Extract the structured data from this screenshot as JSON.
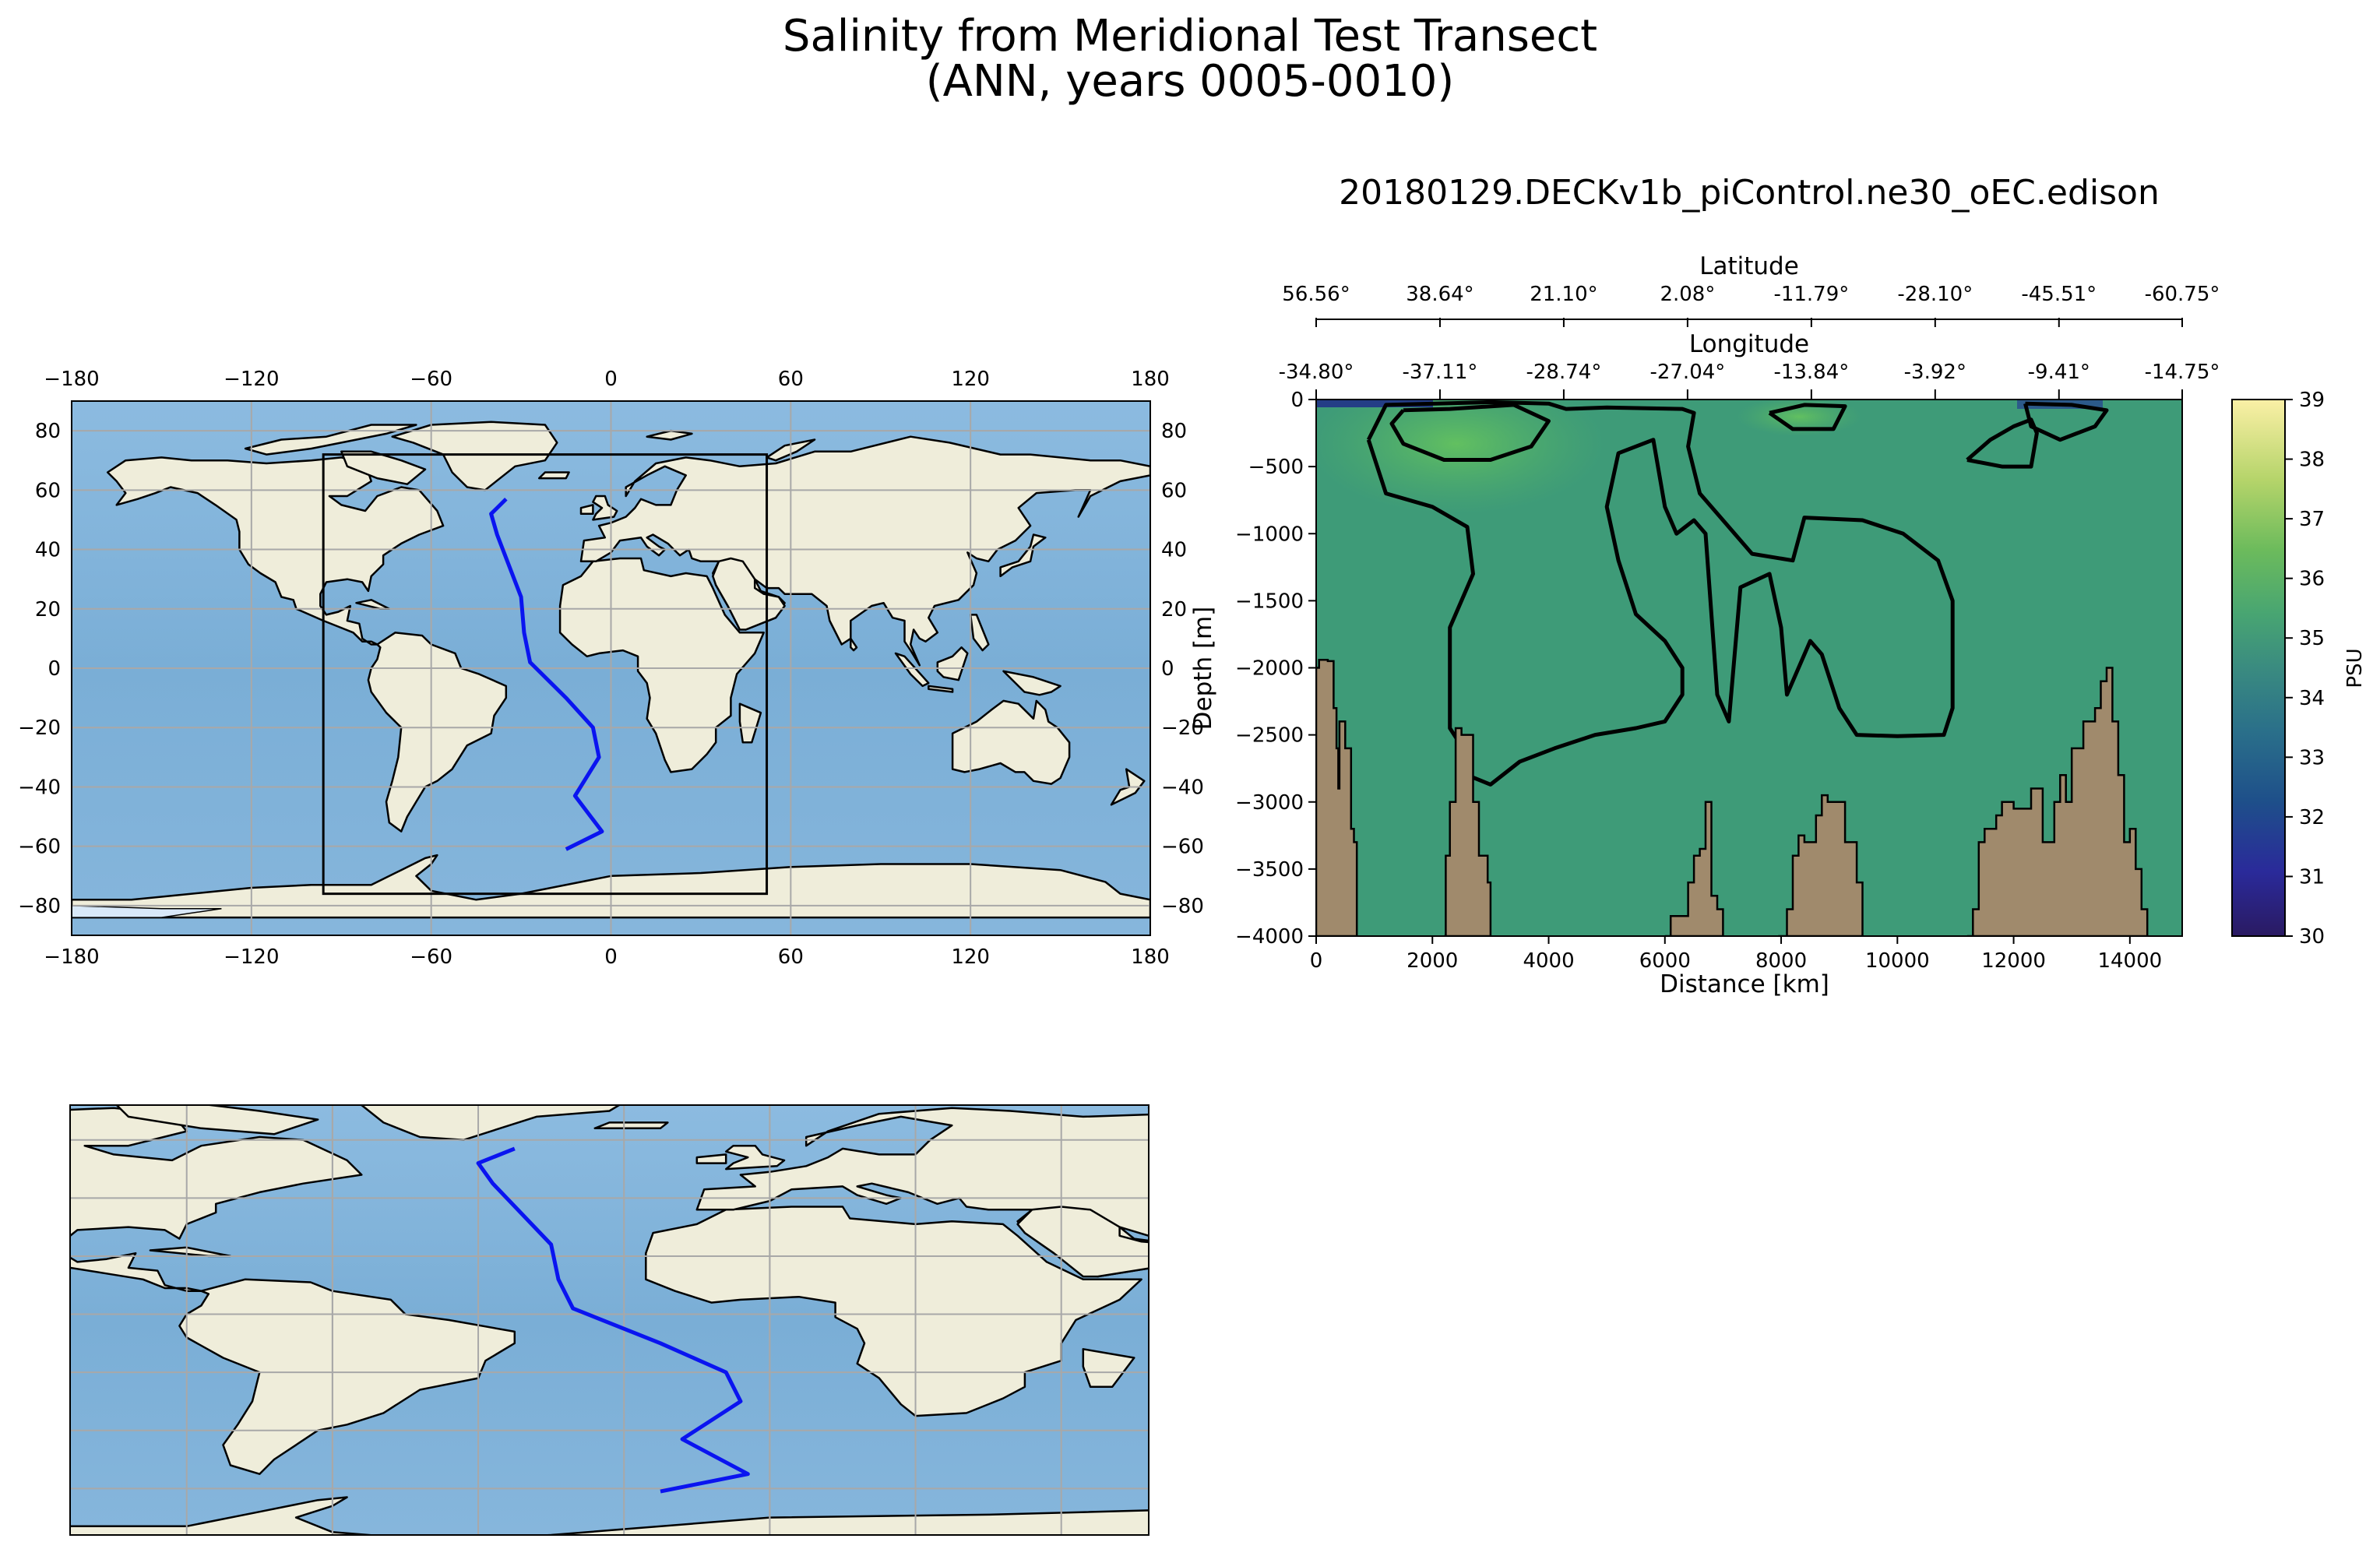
{
  "figure": {
    "title_line1": "Salinity from Meridional Test Transect",
    "title_line2": "(ANN, years 0005-0010)"
  },
  "colors": {
    "ocean": "#82b2d9",
    "land": "#efedda",
    "transect": "#0a14f0",
    "salinity_base": "#3e9b78",
    "salinity_high": "#5fbd63",
    "salinity_low": "#243e86",
    "bathymetry": "#a08a6c",
    "contour": "#000000"
  },
  "chart_data": [
    {
      "type": "map",
      "name": "global-map",
      "projection": "PlateCarree",
      "xlim": [
        -180,
        180
      ],
      "ylim": [
        -90,
        90
      ],
      "xticks": [
        "−180",
        "−120",
        "−60",
        "0",
        "60",
        "120",
        "180"
      ],
      "xtick_values": [
        -180,
        -120,
        -60,
        0,
        60,
        120,
        180
      ],
      "yticks": [
        "80",
        "60",
        "40",
        "20",
        "0",
        "−20",
        "−40",
        "−60",
        "−80"
      ],
      "ytick_values": [
        80,
        60,
        40,
        20,
        0,
        -20,
        -40,
        -60,
        -80
      ],
      "inset_box": {
        "lon": [
          -96,
          52
        ],
        "lat": [
          -76,
          72
        ]
      },
      "transect": {
        "lon": [
          -35,
          -40,
          -38,
          -30,
          -29,
          -27,
          -15,
          -6,
          -4,
          -12,
          -3,
          -15
        ],
        "lat": [
          57,
          52,
          45,
          24,
          12,
          2,
          -10,
          -20,
          -30,
          -43,
          -55,
          -61
        ]
      }
    },
    {
      "type": "heatmap",
      "name": "salinity-transect",
      "title": "20180129.DECKv1b_piControl.ne30_oEC.edison",
      "xlabel": "Distance [km]",
      "ylabel": "Depth [m]",
      "xlim": [
        0,
        14900
      ],
      "ylim": [
        -4000,
        0
      ],
      "xticks": [
        "0",
        "2000",
        "4000",
        "6000",
        "8000",
        "10000",
        "12000",
        "14000"
      ],
      "xtick_values": [
        0,
        2000,
        4000,
        6000,
        8000,
        10000,
        12000,
        14000
      ],
      "yticks": [
        "0",
        "−500",
        "−1000",
        "−1500",
        "−2000",
        "−2500",
        "−3000",
        "−3500",
        "−4000"
      ],
      "ytick_values": [
        0,
        -500,
        -1000,
        -1500,
        -2000,
        -2500,
        -3000,
        -3500,
        -4000
      ],
      "top_axes": {
        "latitude_label": "Latitude",
        "latitude_ticks": [
          "56.56°",
          "38.64°",
          "21.10°",
          "2.08°",
          "-11.79°",
          "-28.10°",
          "-45.51°",
          "-60.75°"
        ],
        "longitude_label": "Longitude",
        "longitude_ticks": [
          "-34.80°",
          "-37.11°",
          "-28.74°",
          "-27.04°",
          "-13.84°",
          "-3.92°",
          "-9.41°",
          "-14.75°"
        ],
        "tick_distances": [
          0,
          2130,
          4260,
          6390,
          8520,
          10650,
          12780,
          14900
        ]
      },
      "colorbar": {
        "label": "PSU",
        "min": 30,
        "max": 39,
        "ticks": [
          "30",
          "31",
          "32",
          "33",
          "34",
          "35",
          "36",
          "37",
          "38",
          "39"
        ],
        "tick_values": [
          30,
          31,
          32,
          33,
          34,
          35,
          36,
          37,
          38,
          39
        ]
      },
      "contour_35": [
        [
          [
            900,
            -300
          ],
          [
            1200,
            -700
          ],
          [
            2000,
            -800
          ],
          [
            2600,
            -950
          ],
          [
            2700,
            -1300
          ],
          [
            2300,
            -1700
          ],
          [
            2300,
            -2450
          ],
          [
            2450,
            -2550
          ],
          [
            2600,
            -2800
          ],
          [
            3000,
            -2870
          ],
          [
            3500,
            -2700
          ],
          [
            4100,
            -2600
          ],
          [
            4800,
            -2500
          ],
          [
            5500,
            -2450
          ],
          [
            6000,
            -2400
          ],
          [
            6300,
            -2200
          ],
          [
            6300,
            -2000
          ],
          [
            6000,
            -1800
          ],
          [
            5500,
            -1600
          ],
          [
            5200,
            -1200
          ],
          [
            5000,
            -800
          ],
          [
            5200,
            -400
          ],
          [
            5800,
            -300
          ],
          [
            6000,
            -800
          ],
          [
            6200,
            -1000
          ],
          [
            6500,
            -900
          ],
          [
            6700,
            -1000
          ],
          [
            6900,
            -2200
          ],
          [
            7100,
            -2400
          ],
          [
            7300,
            -1400
          ],
          [
            7800,
            -1300
          ],
          [
            8000,
            -1700
          ],
          [
            8100,
            -2200
          ],
          [
            8500,
            -1800
          ],
          [
            8700,
            -1900
          ],
          [
            9000,
            -2300
          ],
          [
            9300,
            -2500
          ],
          [
            10000,
            -2510
          ],
          [
            10800,
            -2500
          ],
          [
            10950,
            -2300
          ],
          [
            10950,
            -1500
          ],
          [
            10700,
            -1200
          ],
          [
            10100,
            -1000
          ],
          [
            9400,
            -900
          ],
          [
            8400,
            -880
          ],
          [
            8200,
            -1200
          ],
          [
            7500,
            -1150
          ],
          [
            7000,
            -900
          ],
          [
            6600,
            -700
          ],
          [
            6400,
            -350
          ],
          [
            6500,
            -100
          ],
          [
            6300,
            -70
          ],
          [
            5000,
            -60
          ],
          [
            4300,
            -70
          ],
          [
            4000,
            -30
          ],
          [
            3000,
            -20
          ],
          [
            1200,
            -40
          ],
          [
            900,
            -300
          ]
        ],
        [
          [
            1500,
            -80
          ],
          [
            2300,
            -70
          ],
          [
            3400,
            -40
          ],
          [
            4000,
            -160
          ],
          [
            3700,
            -350
          ],
          [
            3000,
            -450
          ],
          [
            2200,
            -450
          ],
          [
            1500,
            -330
          ],
          [
            1300,
            -180
          ],
          [
            1500,
            -80
          ]
        ],
        [
          [
            11200,
            -450
          ],
          [
            11600,
            -300
          ],
          [
            12000,
            -200
          ],
          [
            12300,
            -150
          ],
          [
            12400,
            -250
          ],
          [
            12300,
            -500
          ],
          [
            11800,
            -500
          ],
          [
            11200,
            -450
          ]
        ],
        [
          [
            7800,
            -100
          ],
          [
            8400,
            -40
          ],
          [
            9100,
            -50
          ],
          [
            8900,
            -220
          ],
          [
            8200,
            -220
          ],
          [
            7800,
            -100
          ]
        ],
        [
          [
            12200,
            -30
          ],
          [
            13000,
            -40
          ],
          [
            13600,
            -80
          ],
          [
            13400,
            -200
          ],
          [
            12800,
            -300
          ],
          [
            12300,
            -200
          ],
          [
            12200,
            -30
          ]
        ]
      ],
      "bathymetry_top": [
        [
          0,
          -2000
        ],
        [
          50,
          -1940
        ],
        [
          200,
          -1950
        ],
        [
          300,
          -2300
        ],
        [
          350,
          -2600
        ],
        [
          380,
          -2900
        ],
        [
          400,
          -2400
        ],
        [
          500,
          -2600
        ],
        [
          600,
          -3200
        ],
        [
          650,
          -3300
        ],
        [
          700,
          -4000
        ],
        [
          2200,
          -4000
        ],
        [
          2230,
          -3400
        ],
        [
          2300,
          -3000
        ],
        [
          2400,
          -2450
        ],
        [
          2500,
          -2500
        ],
        [
          2600,
          -2500
        ],
        [
          2700,
          -3000
        ],
        [
          2800,
          -3400
        ],
        [
          2950,
          -3600
        ],
        [
          3000,
          -4000
        ],
        [
          6000,
          -4000
        ],
        [
          6100,
          -3850
        ],
        [
          6300,
          -3850
        ],
        [
          6400,
          -3600
        ],
        [
          6500,
          -3400
        ],
        [
          6600,
          -3350
        ],
        [
          6700,
          -3000
        ],
        [
          6800,
          -3700
        ],
        [
          6900,
          -3800
        ],
        [
          7000,
          -4000
        ],
        [
          7950,
          -4000
        ],
        [
          8100,
          -3800
        ],
        [
          8200,
          -3400
        ],
        [
          8300,
          -3250
        ],
        [
          8400,
          -3300
        ],
        [
          8600,
          -3100
        ],
        [
          8700,
          -2950
        ],
        [
          8800,
          -3000
        ],
        [
          9000,
          -3000
        ],
        [
          9100,
          -3300
        ],
        [
          9300,
          -3600
        ],
        [
          9400,
          -4000
        ],
        [
          11200,
          -4000
        ],
        [
          11300,
          -3800
        ],
        [
          11400,
          -3300
        ],
        [
          11500,
          -3200
        ],
        [
          11700,
          -3100
        ],
        [
          11800,
          -3000
        ],
        [
          12000,
          -3050
        ],
        [
          12300,
          -2900
        ],
        [
          12500,
          -3300
        ],
        [
          12700,
          -3000
        ],
        [
          12800,
          -2800
        ],
        [
          12900,
          -3000
        ],
        [
          13000,
          -2600
        ],
        [
          13200,
          -2400
        ],
        [
          13400,
          -2300
        ],
        [
          13500,
          -2100
        ],
        [
          13600,
          -2000
        ],
        [
          13700,
          -2400
        ],
        [
          13800,
          -2800
        ],
        [
          13900,
          -3300
        ],
        [
          14000,
          -3200
        ],
        [
          14100,
          -3500
        ],
        [
          14200,
          -3800
        ],
        [
          14300,
          -4000
        ]
      ]
    },
    {
      "type": "map",
      "name": "inset-map",
      "projection": "PlateCarree",
      "xlim": [
        -96,
        52
      ],
      "ylim": [
        -76,
        72
      ]
    }
  ]
}
